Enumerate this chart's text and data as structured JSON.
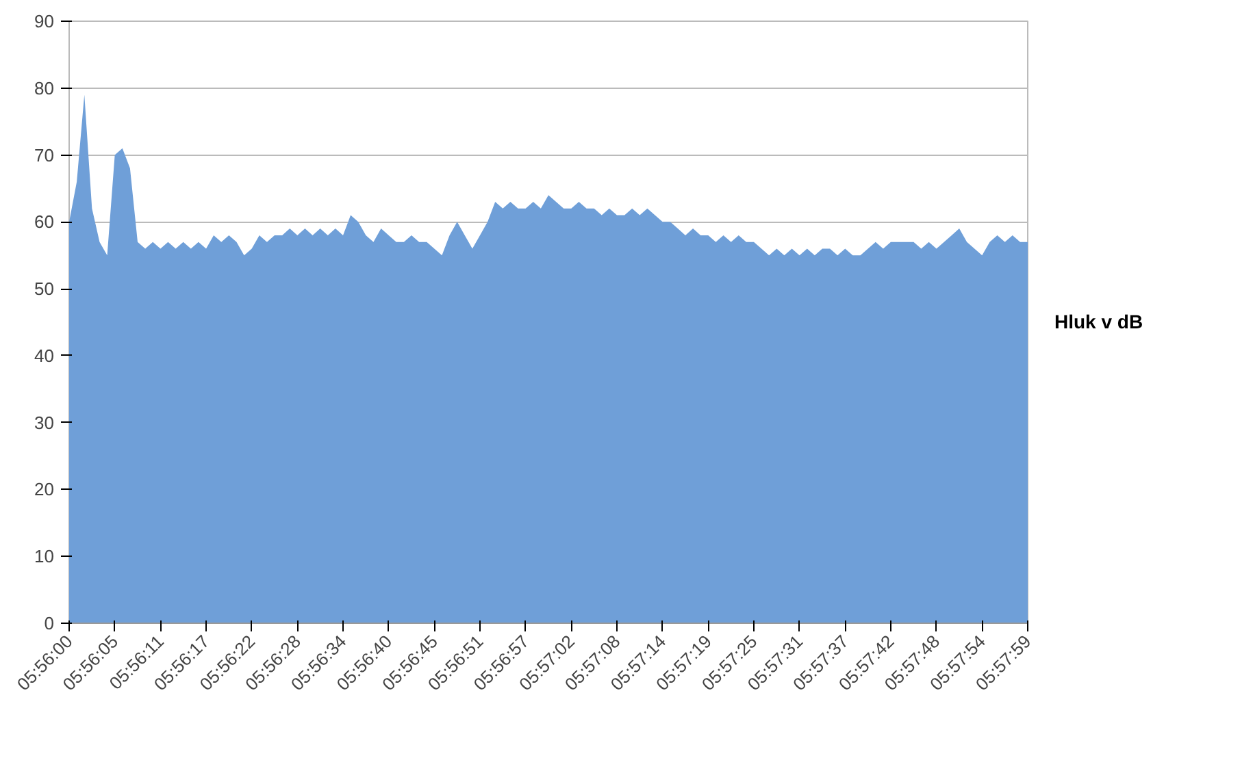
{
  "chart_data": {
    "type": "area",
    "grid": "y",
    "ylim": [
      0,
      90
    ],
    "yticks": [
      0,
      10,
      20,
      30,
      40,
      50,
      60,
      70,
      80,
      90
    ],
    "categories": [
      "05:56:00",
      null,
      null,
      null,
      null,
      null,
      "05:56:05",
      null,
      null,
      null,
      null,
      null,
      "05:56:11",
      null,
      null,
      null,
      null,
      null,
      "05:56:17",
      null,
      null,
      null,
      null,
      null,
      "05:56:22",
      null,
      null,
      null,
      null,
      null,
      "05:56:28",
      null,
      null,
      null,
      null,
      null,
      "05:56:34",
      null,
      null,
      null,
      null,
      null,
      "05:56:40",
      null,
      null,
      null,
      null,
      null,
      "05:56:45",
      null,
      null,
      null,
      null,
      null,
      "05:56:51",
      null,
      null,
      null,
      null,
      null,
      "05:56:57",
      null,
      null,
      null,
      null,
      null,
      "05:57:02",
      null,
      null,
      null,
      null,
      null,
      "05:57:08",
      null,
      null,
      null,
      null,
      null,
      "05:57:14",
      null,
      null,
      null,
      null,
      null,
      "05:57:19",
      null,
      null,
      null,
      null,
      null,
      "05:57:25",
      null,
      null,
      null,
      null,
      null,
      "05:57:31",
      null,
      null,
      null,
      null,
      null,
      "05:57:37",
      null,
      null,
      null,
      null,
      null,
      "05:57:42",
      null,
      null,
      null,
      null,
      null,
      "05:57:48",
      null,
      null,
      null,
      null,
      null,
      "05:57:54",
      null,
      null,
      null,
      null,
      null,
      "05:57:59"
    ],
    "series": [
      {
        "name": "Hluk v dB",
        "color": "#6f9fd8",
        "values": [
          60,
          66,
          79,
          62,
          57,
          55,
          70,
          71,
          68,
          57,
          56,
          57,
          56,
          57,
          56,
          57,
          56,
          57,
          56,
          58,
          57,
          58,
          57,
          55,
          56,
          58,
          57,
          58,
          58,
          59,
          58,
          59,
          58,
          59,
          58,
          59,
          58,
          61,
          60,
          58,
          57,
          59,
          58,
          57,
          57,
          58,
          57,
          57,
          56,
          55,
          58,
          60,
          58,
          56,
          58,
          60,
          63,
          62,
          63,
          62,
          62,
          63,
          62,
          64,
          63,
          62,
          62,
          63,
          62,
          62,
          61,
          62,
          61,
          61,
          62,
          61,
          62,
          61,
          60,
          60,
          59,
          58,
          59,
          58,
          58,
          57,
          58,
          57,
          58,
          57,
          57,
          56,
          55,
          56,
          55,
          56,
          55,
          56,
          55,
          56,
          56,
          55,
          56,
          55,
          55,
          56,
          57,
          56,
          57,
          57,
          57,
          57,
          56,
          57,
          56,
          57,
          58,
          59,
          57,
          56,
          55,
          57,
          58,
          57,
          58,
          57,
          57
        ]
      }
    ]
  }
}
